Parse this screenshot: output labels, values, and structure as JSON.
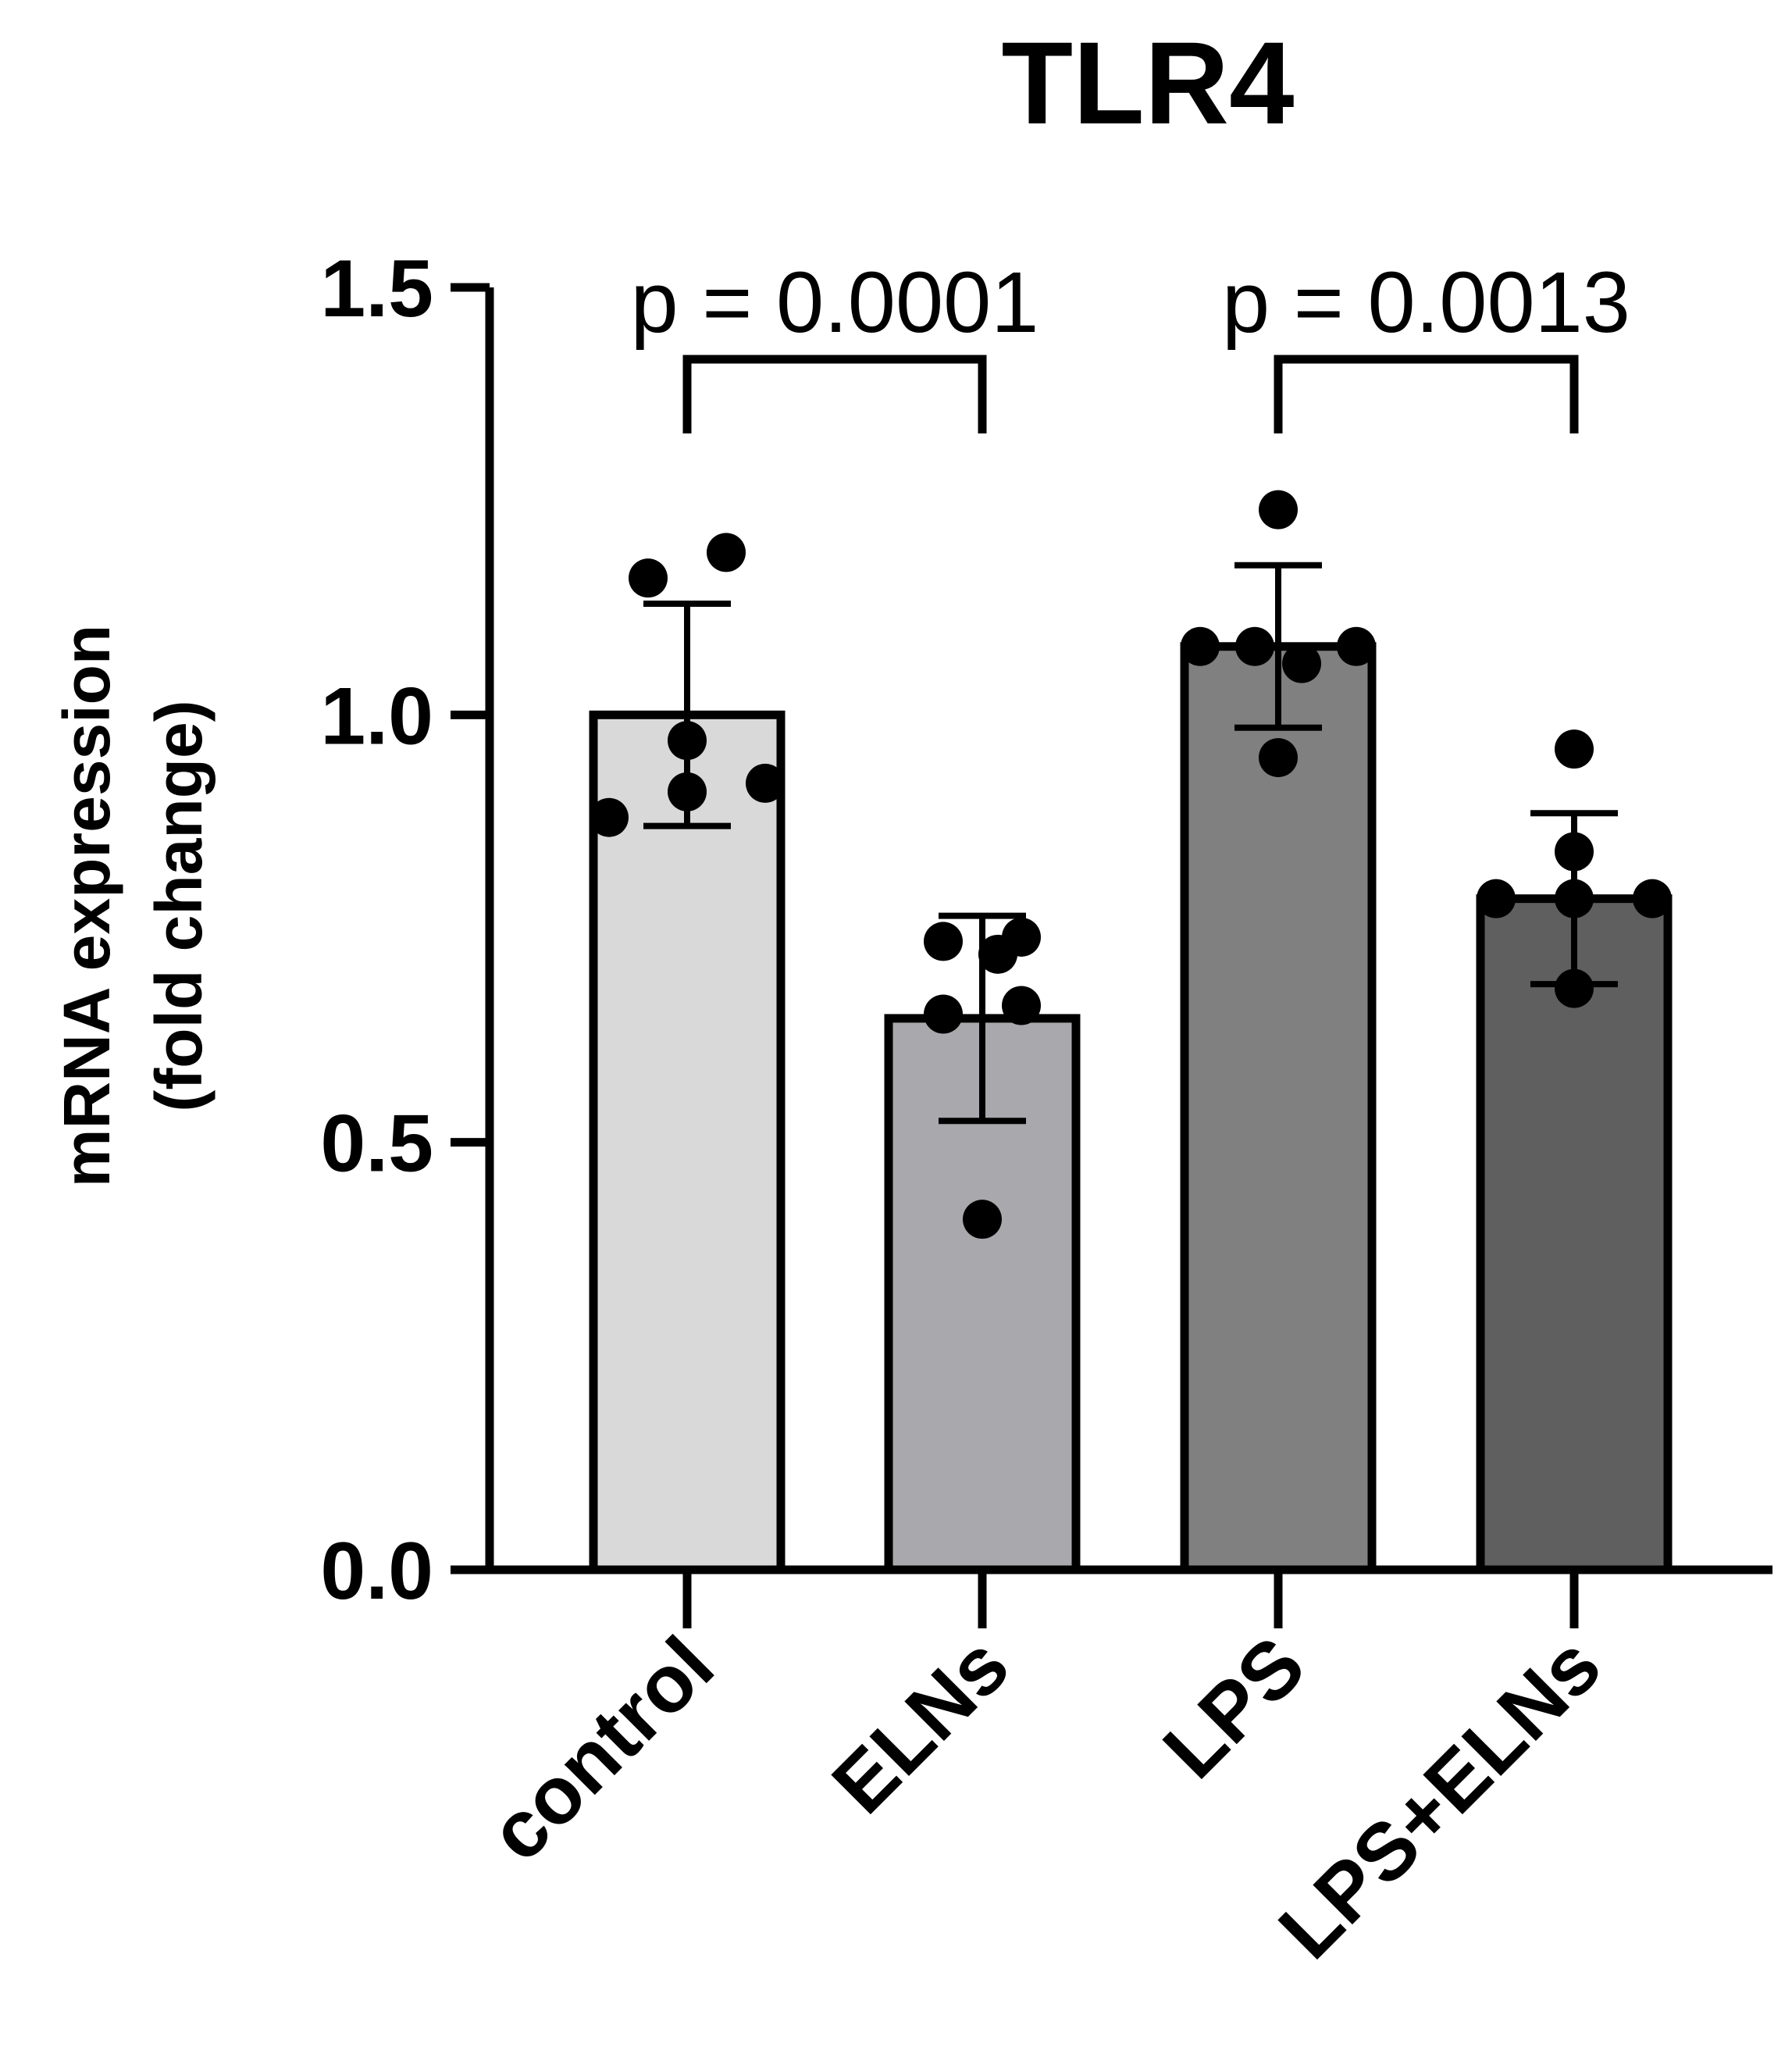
{
  "chart_data": {
    "type": "bar",
    "title": "TLR4",
    "ylabel": [
      "mRNA expression",
      "(fold change)"
    ],
    "xlabel": "",
    "categories": [
      "control",
      "ELNs",
      "LPS",
      "LPS+ELNs"
    ],
    "values": [
      1.0,
      0.645,
      1.08,
      0.785
    ],
    "error": [
      0.13,
      0.12,
      0.095,
      0.1
    ],
    "points": [
      [
        0.88,
        0.92,
        0.91,
        0.97,
        1.16,
        1.19
      ],
      [
        0.41,
        0.65,
        0.66,
        0.735,
        0.74,
        0.72
      ],
      [
        1.08,
        1.08,
        1.08,
        1.06,
        0.95,
        1.24
      ],
      [
        0.785,
        0.785,
        0.785,
        0.84,
        0.96,
        0.68
      ]
    ],
    "bar_colors": [
      "#d9d9d9",
      "#a8a8ad",
      "#808080",
      "#5f5f5f"
    ],
    "yticks": [
      "0.0",
      "0.5",
      "1.0",
      "1.5"
    ],
    "ylim": [
      0,
      1.5
    ],
    "significance": [
      {
        "from": 0,
        "to": 1,
        "label": "p = 0.0001"
      },
      {
        "from": 2,
        "to": 3,
        "label": "p = 0.0013"
      }
    ]
  }
}
